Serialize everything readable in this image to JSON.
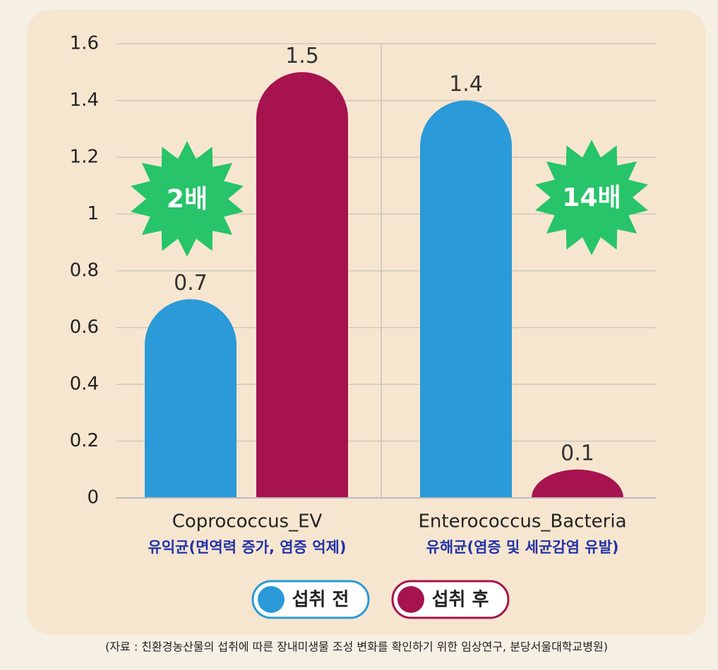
{
  "chart_data": {
    "type": "bar",
    "categories": [
      "Coprococcus_EV",
      "Enterococcus_Bacteria"
    ],
    "category_subtitles": [
      "유익균(면역력 증가, 염증 억제)",
      "유해균(염증 및 세균감염 유발)"
    ],
    "series": [
      {
        "name": "섭취 전",
        "color": "#2a9ad8",
        "values": [
          0.7,
          1.4
        ]
      },
      {
        "name": "섭취 후",
        "color": "#a6134f",
        "values": [
          1.5,
          0.1
        ]
      }
    ],
    "annotations": [
      "2배",
      "14배"
    ],
    "ylim": [
      0,
      1.6
    ],
    "yticks": [
      0,
      0.2,
      0.4,
      0.6,
      0.8,
      1,
      1.2,
      1.4,
      1.6
    ],
    "grid": true,
    "source": "(자료 : 친환경농산물의 섭취에 따른 장내미생물 조성 변화를 확인하기 위한 임상연구, 분당서울대학교병원)"
  }
}
